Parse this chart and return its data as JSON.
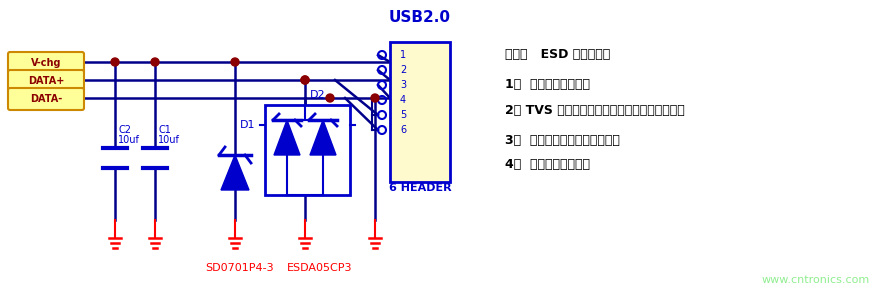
{
  "bg_color": "#ffffff",
  "circuit_color": "#0000CD",
  "wire_color": "#00008B",
  "node_color": "#8B0000",
  "gnd_color": "#FF0000",
  "label_color": "#0000CD",
  "red_text_color": "#FF0000",
  "yellow_fill": "#FFFF99",
  "yellow_border": "#CC8800",
  "connector_fill": "#FFFACD",
  "connector_border": "#0000CD",
  "usb_title": "USB2.0",
  "usb_title_color": "#0000CD",
  "connector_label": "6 HEADER",
  "pin_labels": [
    "1",
    "2",
    "3",
    "4",
    "5",
    "6"
  ],
  "input_labels": [
    "V-chg",
    "DATA+",
    "DATA-"
  ],
  "comp_labels_C2": [
    "C2",
    "10uf"
  ],
  "comp_labels_C1": [
    "C1",
    "10uf"
  ],
  "comp_label_D1": "D1",
  "comp_label_D2": "D2",
  "bottom_label1": "SD0701P4-3",
  "bottom_label2": "ESDA05CP3",
  "watermark": "www.cntronics.com",
  "watermark_color": "#90EE90",
  "note_title": "备注：   ESD 选型原则：",
  "note_lines": [
    "1、  选择合适的封装；",
    "2、 TVS 的击穿电压大于电路的最大工作电压；",
    "3、  选择符合测试要求的功率；",
    "4、  选择算位较小的。"
  ],
  "note_color": "#000000",
  "note_bold_color": "#000000"
}
